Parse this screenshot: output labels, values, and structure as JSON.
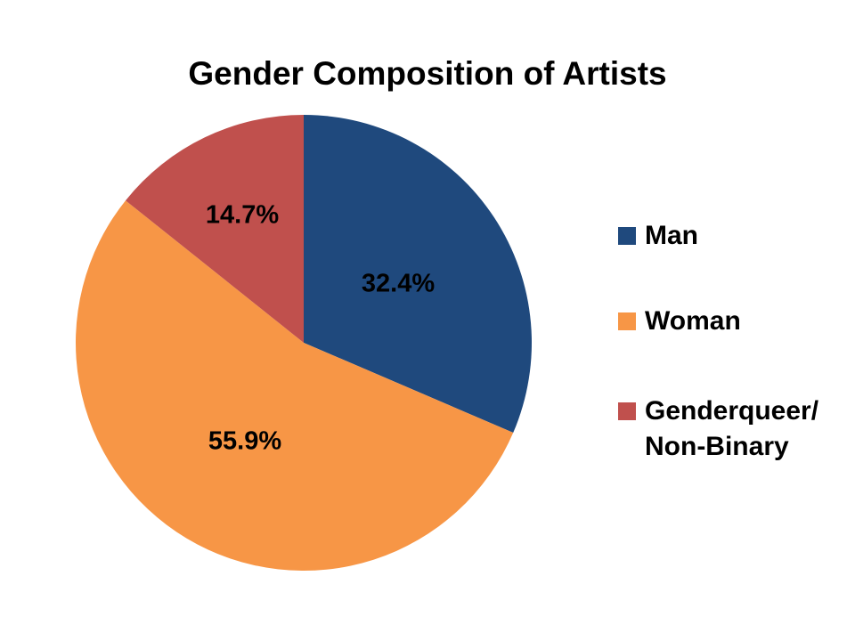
{
  "chart_data": {
    "type": "pie",
    "title": "Gender Composition of Artists",
    "slices": [
      {
        "name": "Man",
        "value": 32.4,
        "label": "32.4%",
        "color": "#1F497D"
      },
      {
        "name": "Woman",
        "value": 55.9,
        "label": "55.9%",
        "color": "#F79646"
      },
      {
        "name": "Genderqueer/\nNon-Binary",
        "value": 14.7,
        "label": "14.7%",
        "color": "#C0504D"
      }
    ],
    "start": "12 o'clock",
    "direction": "clockwise",
    "legend_position": "right"
  }
}
